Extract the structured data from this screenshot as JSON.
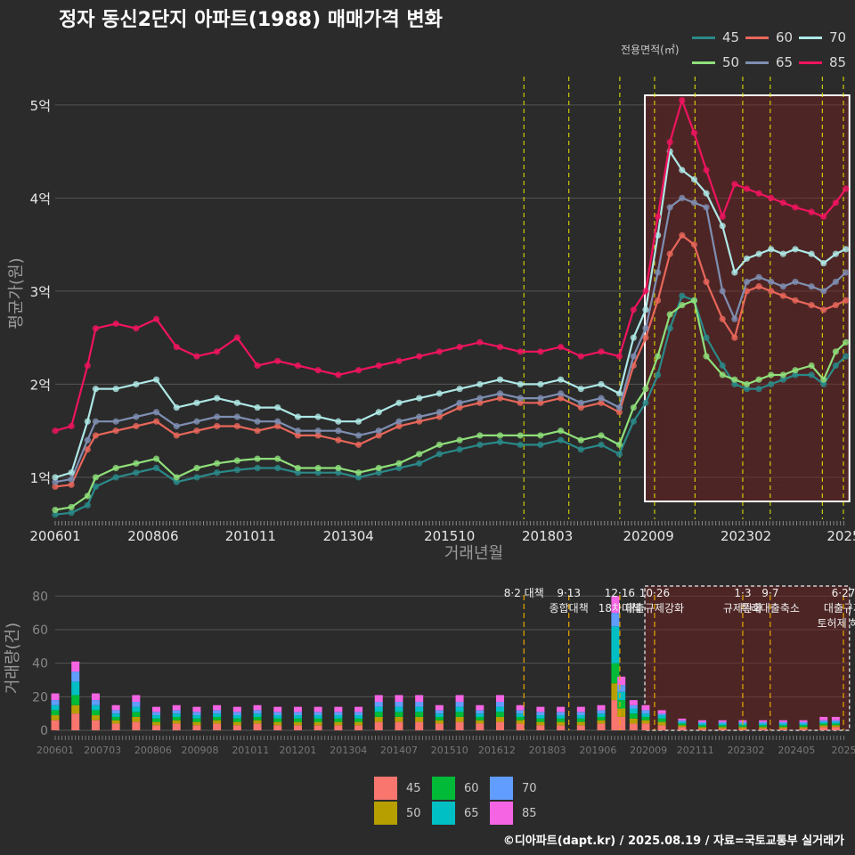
{
  "title": "정자 동신2단지 아파트(1988) 매매가격 변화",
  "footer": "©디아파트(dapt.kr) / 2025.08.19 / 자료=국토교통부 실거래가",
  "legend_top_label": "전용면적(㎡)",
  "chart_data": [
    {
      "type": "line",
      "title": "정자 동신2단지 아파트(1988) 매매가격 변화",
      "xlabel": "거래년월",
      "ylabel": "평균가(원)",
      "x_tick_labels": [
        "200601",
        "200806",
        "201011",
        "201304",
        "201510",
        "201803",
        "202009",
        "202302",
        "2025"
      ],
      "y_tick_labels": [
        "1억",
        "2억",
        "3억",
        "4억",
        "5억"
      ],
      "y_ticks": [
        1,
        2,
        3,
        4,
        5
      ],
      "ylim": [
        0.55,
        5.4
      ],
      "xlim": [
        2006.0,
        2025.6
      ],
      "legend_title": "전용면적(㎡)",
      "legend_position": "top-right",
      "policy_lines": [
        2017.59,
        2018.7,
        2019.96,
        2020.82,
        2021.82,
        2023.0,
        2023.68,
        2024.97,
        2025.49
      ],
      "highlight_range": [
        2020.58,
        2025.55
      ],
      "series": [
        {
          "name": "45",
          "color": "#2a8a8a",
          "x": [
            2006.0,
            2006.4,
            2006.8,
            2007.0,
            2007.5,
            2008.0,
            2008.5,
            2009.0,
            2009.5,
            2010.0,
            2010.5,
            2011.0,
            2011.5,
            2012.0,
            2012.5,
            2013.0,
            2013.5,
            2014.0,
            2014.5,
            2015.0,
            2015.5,
            2016.0,
            2016.5,
            2017.0,
            2017.5,
            2018.0,
            2018.5,
            2019.0,
            2019.5,
            2019.95,
            2020.3,
            2020.6,
            2020.9,
            2021.2,
            2021.5,
            2021.8,
            2022.1,
            2022.5,
            2022.8,
            2023.1,
            2023.4,
            2023.7,
            2024.0,
            2024.3,
            2024.7,
            2025.0,
            2025.3,
            2025.55
          ],
          "values": [
            0.6,
            0.62,
            0.7,
            0.9,
            1.0,
            1.05,
            1.1,
            0.95,
            1.0,
            1.05,
            1.08,
            1.1,
            1.1,
            1.05,
            1.05,
            1.05,
            1.0,
            1.05,
            1.1,
            1.15,
            1.25,
            1.3,
            1.35,
            1.38,
            1.35,
            1.35,
            1.4,
            1.3,
            1.35,
            1.25,
            1.6,
            1.8,
            2.1,
            2.6,
            2.95,
            2.9,
            2.5,
            2.2,
            2.0,
            1.95,
            1.95,
            2.0,
            2.05,
            2.1,
            2.1,
            2.0,
            2.2,
            2.3
          ]
        },
        {
          "name": "50",
          "color": "#8fe07a",
          "x": [
            2006.0,
            2006.4,
            2006.8,
            2007.0,
            2007.5,
            2008.0,
            2008.5,
            2009.0,
            2009.5,
            2010.0,
            2010.5,
            2011.0,
            2011.5,
            2012.0,
            2012.5,
            2013.0,
            2013.5,
            2014.0,
            2014.5,
            2015.0,
            2015.5,
            2016.0,
            2016.5,
            2017.0,
            2017.5,
            2018.0,
            2018.5,
            2019.0,
            2019.5,
            2019.95,
            2020.3,
            2020.6,
            2020.9,
            2021.2,
            2021.5,
            2021.8,
            2022.1,
            2022.5,
            2022.8,
            2023.1,
            2023.4,
            2023.7,
            2024.0,
            2024.3,
            2024.7,
            2025.0,
            2025.3,
            2025.55
          ],
          "values": [
            0.65,
            0.68,
            0.8,
            1.0,
            1.1,
            1.15,
            1.2,
            1.0,
            1.1,
            1.15,
            1.18,
            1.2,
            1.2,
            1.1,
            1.1,
            1.1,
            1.05,
            1.1,
            1.15,
            1.25,
            1.35,
            1.4,
            1.45,
            1.45,
            1.45,
            1.45,
            1.5,
            1.4,
            1.45,
            1.35,
            1.75,
            1.95,
            2.3,
            2.75,
            2.85,
            2.9,
            2.3,
            2.1,
            2.05,
            2.0,
            2.05,
            2.1,
            2.1,
            2.15,
            2.2,
            2.05,
            2.35,
            2.45
          ]
        },
        {
          "name": "60",
          "color": "#e8665a",
          "x": [
            2006.0,
            2006.4,
            2006.8,
            2007.0,
            2007.5,
            2008.0,
            2008.5,
            2009.0,
            2009.5,
            2010.0,
            2010.5,
            2011.0,
            2011.5,
            2012.0,
            2012.5,
            2013.0,
            2013.5,
            2014.0,
            2014.5,
            2015.0,
            2015.5,
            2016.0,
            2016.5,
            2017.0,
            2017.5,
            2018.0,
            2018.5,
            2019.0,
            2019.5,
            2019.95,
            2020.3,
            2020.6,
            2020.9,
            2021.2,
            2021.5,
            2021.8,
            2022.1,
            2022.5,
            2022.8,
            2023.1,
            2023.4,
            2023.7,
            2024.0,
            2024.3,
            2024.7,
            2025.0,
            2025.3,
            2025.55
          ],
          "values": [
            0.9,
            0.92,
            1.3,
            1.45,
            1.5,
            1.55,
            1.6,
            1.45,
            1.5,
            1.55,
            1.55,
            1.5,
            1.55,
            1.45,
            1.45,
            1.4,
            1.35,
            1.45,
            1.55,
            1.6,
            1.65,
            1.75,
            1.8,
            1.85,
            1.8,
            1.8,
            1.85,
            1.75,
            1.8,
            1.7,
            2.2,
            2.5,
            2.9,
            3.4,
            3.6,
            3.5,
            3.1,
            2.7,
            2.5,
            3.0,
            3.05,
            3.0,
            2.95,
            2.9,
            2.85,
            2.8,
            2.85,
            2.9
          ]
        },
        {
          "name": "65",
          "color": "#7f8fb2",
          "x": [
            2006.0,
            2006.4,
            2006.8,
            2007.0,
            2007.5,
            2008.0,
            2008.5,
            2009.0,
            2009.5,
            2010.0,
            2010.5,
            2011.0,
            2011.5,
            2012.0,
            2012.5,
            2013.0,
            2013.5,
            2014.0,
            2014.5,
            2015.0,
            2015.5,
            2016.0,
            2016.5,
            2017.0,
            2017.5,
            2018.0,
            2018.5,
            2019.0,
            2019.5,
            2019.95,
            2020.3,
            2020.6,
            2020.9,
            2021.2,
            2021.5,
            2021.8,
            2022.1,
            2022.5,
            2022.8,
            2023.1,
            2023.4,
            2023.7,
            2024.0,
            2024.3,
            2024.7,
            2025.0,
            2025.3,
            2025.55
          ],
          "values": [
            0.95,
            0.98,
            1.4,
            1.6,
            1.6,
            1.65,
            1.7,
            1.55,
            1.6,
            1.65,
            1.65,
            1.6,
            1.6,
            1.5,
            1.5,
            1.5,
            1.45,
            1.5,
            1.6,
            1.65,
            1.7,
            1.8,
            1.85,
            1.9,
            1.85,
            1.85,
            1.9,
            1.8,
            1.85,
            1.75,
            2.3,
            2.6,
            3.2,
            3.9,
            4.0,
            3.95,
            3.9,
            3.0,
            2.7,
            3.1,
            3.15,
            3.1,
            3.05,
            3.1,
            3.05,
            3.0,
            3.1,
            3.2
          ]
        },
        {
          "name": "70",
          "color": "#aee8e6",
          "x": [
            2006.0,
            2006.4,
            2006.8,
            2007.0,
            2007.5,
            2008.0,
            2008.5,
            2009.0,
            2009.5,
            2010.0,
            2010.5,
            2011.0,
            2011.5,
            2012.0,
            2012.5,
            2013.0,
            2013.5,
            2014.0,
            2014.5,
            2015.0,
            2015.5,
            2016.0,
            2016.5,
            2017.0,
            2017.5,
            2018.0,
            2018.5,
            2019.0,
            2019.5,
            2019.95,
            2020.3,
            2020.6,
            2020.9,
            2021.2,
            2021.5,
            2021.8,
            2022.1,
            2022.5,
            2022.8,
            2023.1,
            2023.4,
            2023.7,
            2024.0,
            2024.3,
            2024.7,
            2025.0,
            2025.3,
            2025.55
          ],
          "values": [
            1.0,
            1.05,
            1.6,
            1.95,
            1.95,
            2.0,
            2.05,
            1.75,
            1.8,
            1.85,
            1.8,
            1.75,
            1.75,
            1.65,
            1.65,
            1.6,
            1.6,
            1.7,
            1.8,
            1.85,
            1.9,
            1.95,
            2.0,
            2.05,
            2.0,
            2.0,
            2.05,
            1.95,
            2.0,
            1.9,
            2.5,
            2.8,
            3.6,
            4.5,
            4.3,
            4.2,
            4.05,
            3.7,
            3.2,
            3.35,
            3.4,
            3.45,
            3.4,
            3.45,
            3.4,
            3.3,
            3.4,
            3.45
          ]
        },
        {
          "name": "85",
          "color": "#f0145f",
          "x": [
            2006.0,
            2006.4,
            2006.8,
            2007.0,
            2007.5,
            2008.0,
            2008.5,
            2009.0,
            2009.5,
            2010.0,
            2010.5,
            2011.0,
            2011.5,
            2012.0,
            2012.5,
            2013.0,
            2013.5,
            2014.0,
            2014.5,
            2015.0,
            2015.5,
            2016.0,
            2016.5,
            2017.0,
            2017.5,
            2018.0,
            2018.5,
            2019.0,
            2019.5,
            2019.95,
            2020.3,
            2020.6,
            2020.9,
            2021.2,
            2021.5,
            2021.8,
            2022.1,
            2022.5,
            2022.8,
            2023.1,
            2023.4,
            2023.7,
            2024.0,
            2024.3,
            2024.7,
            2025.0,
            2025.3,
            2025.55
          ],
          "values": [
            1.5,
            1.55,
            2.2,
            2.6,
            2.65,
            2.6,
            2.7,
            2.4,
            2.3,
            2.35,
            2.5,
            2.2,
            2.25,
            2.2,
            2.15,
            2.1,
            2.15,
            2.2,
            2.25,
            2.3,
            2.35,
            2.4,
            2.45,
            2.4,
            2.35,
            2.35,
            2.4,
            2.3,
            2.35,
            2.3,
            2.8,
            3.0,
            3.8,
            4.6,
            5.05,
            4.7,
            4.3,
            3.8,
            4.15,
            4.1,
            4.05,
            4.0,
            3.95,
            3.9,
            3.85,
            3.8,
            3.95,
            4.1
          ]
        }
      ]
    },
    {
      "type": "bar",
      "stacked": true,
      "xlabel": "",
      "ylabel": "거래량(건)",
      "x_tick_labels": [
        "200601",
        "200703",
        "200806",
        "200908",
        "201011",
        "201201",
        "201304",
        "201407",
        "201510",
        "201612",
        "201803",
        "201906",
        "202009",
        "202111",
        "202302",
        "202405",
        "2025"
      ],
      "y_ticks": [
        0,
        20,
        40,
        60,
        80
      ],
      "ylim": [
        0,
        86
      ],
      "xlim": [
        2006.0,
        2025.6
      ],
      "highlight_range": [
        2020.58,
        2025.55
      ],
      "categories": [
        2006.0,
        2006.5,
        2007.0,
        2007.5,
        2008.0,
        2008.5,
        2009.0,
        2009.5,
        2010.0,
        2010.5,
        2011.0,
        2011.5,
        2012.0,
        2012.5,
        2013.0,
        2013.5,
        2014.0,
        2014.5,
        2015.0,
        2015.5,
        2016.0,
        2016.5,
        2017.0,
        2017.5,
        2018.0,
        2018.5,
        2019.0,
        2019.5,
        2019.85,
        2020.0,
        2020.3,
        2020.6,
        2021.0,
        2021.5,
        2022.0,
        2022.5,
        2023.0,
        2023.5,
        2024.0,
        2024.5,
        2025.0,
        2025.3
      ],
      "series": [
        {
          "name": "45",
          "color": "#f8766d",
          "values": [
            6,
            10,
            6,
            4,
            5,
            3,
            4,
            3,
            4,
            3,
            4,
            3,
            3,
            3,
            3,
            3,
            5,
            5,
            5,
            4,
            5,
            4,
            5,
            4,
            3,
            3,
            3,
            4,
            18,
            8,
            4,
            4,
            3,
            2,
            1,
            1,
            1,
            1,
            1,
            1,
            2,
            2
          ]
        },
        {
          "name": "50",
          "color": "#b79f00",
          "values": [
            3,
            5,
            3,
            2,
            3,
            2,
            2,
            2,
            2,
            2,
            2,
            2,
            2,
            2,
            2,
            2,
            3,
            3,
            3,
            2,
            3,
            2,
            3,
            2,
            2,
            2,
            2,
            2,
            10,
            5,
            3,
            2,
            2,
            1,
            1,
            1,
            1,
            1,
            1,
            1,
            1,
            1
          ]
        },
        {
          "name": "60",
          "color": "#00ba38",
          "values": [
            3,
            6,
            3,
            2,
            3,
            2,
            2,
            2,
            2,
            2,
            2,
            2,
            2,
            2,
            2,
            2,
            3,
            3,
            3,
            2,
            3,
            2,
            3,
            2,
            2,
            2,
            2,
            2,
            12,
            5,
            3,
            2,
            2,
            1,
            1,
            1,
            1,
            1,
            1,
            1,
            1,
            1
          ]
        },
        {
          "name": "65",
          "color": "#00bfc4",
          "values": [
            3,
            8,
            3,
            2,
            3,
            2,
            2,
            2,
            2,
            2,
            2,
            2,
            2,
            2,
            2,
            2,
            3,
            3,
            3,
            2,
            3,
            2,
            3,
            2,
            2,
            2,
            2,
            2,
            22,
            5,
            3,
            2,
            2,
            1,
            1,
            1,
            1,
            1,
            1,
            1,
            1,
            1
          ]
        },
        {
          "name": "70",
          "color": "#619cff",
          "values": [
            3,
            6,
            3,
            2,
            3,
            2,
            2,
            2,
            2,
            2,
            2,
            2,
            2,
            2,
            2,
            2,
            3,
            3,
            3,
            2,
            3,
            2,
            3,
            2,
            2,
            2,
            2,
            2,
            8,
            4,
            2,
            2,
            1,
            1,
            1,
            1,
            1,
            1,
            1,
            1,
            1,
            1
          ]
        },
        {
          "name": "85",
          "color": "#f564e3",
          "values": [
            4,
            6,
            4,
            3,
            4,
            3,
            3,
            3,
            3,
            3,
            3,
            3,
            3,
            3,
            3,
            3,
            4,
            4,
            4,
            3,
            4,
            3,
            4,
            3,
            3,
            3,
            3,
            3,
            10,
            5,
            3,
            3,
            2,
            1,
            1,
            1,
            1,
            1,
            1,
            1,
            2,
            2
          ]
        }
      ],
      "annotations": [
        {
          "x": 2017.59,
          "lines": [
            "8·2 대책"
          ]
        },
        {
          "x": 2018.7,
          "lines": [
            "9·13",
            "종합대책"
          ]
        },
        {
          "x": 2019.96,
          "lines": [
            "12·16",
            "18차대책"
          ]
        },
        {
          "x": 2020.82,
          "lines": [
            "10·26",
            "대출규제강화"
          ]
        },
        {
          "x": 2023.0,
          "lines": [
            "1·3",
            "규제완화"
          ]
        },
        {
          "x": 2023.68,
          "lines": [
            "9·7",
            "특례대출축소"
          ]
        },
        {
          "x": 2025.49,
          "lines": [
            "6·27",
            "대출규제",
            "토허제 해제"
          ]
        }
      ]
    }
  ]
}
